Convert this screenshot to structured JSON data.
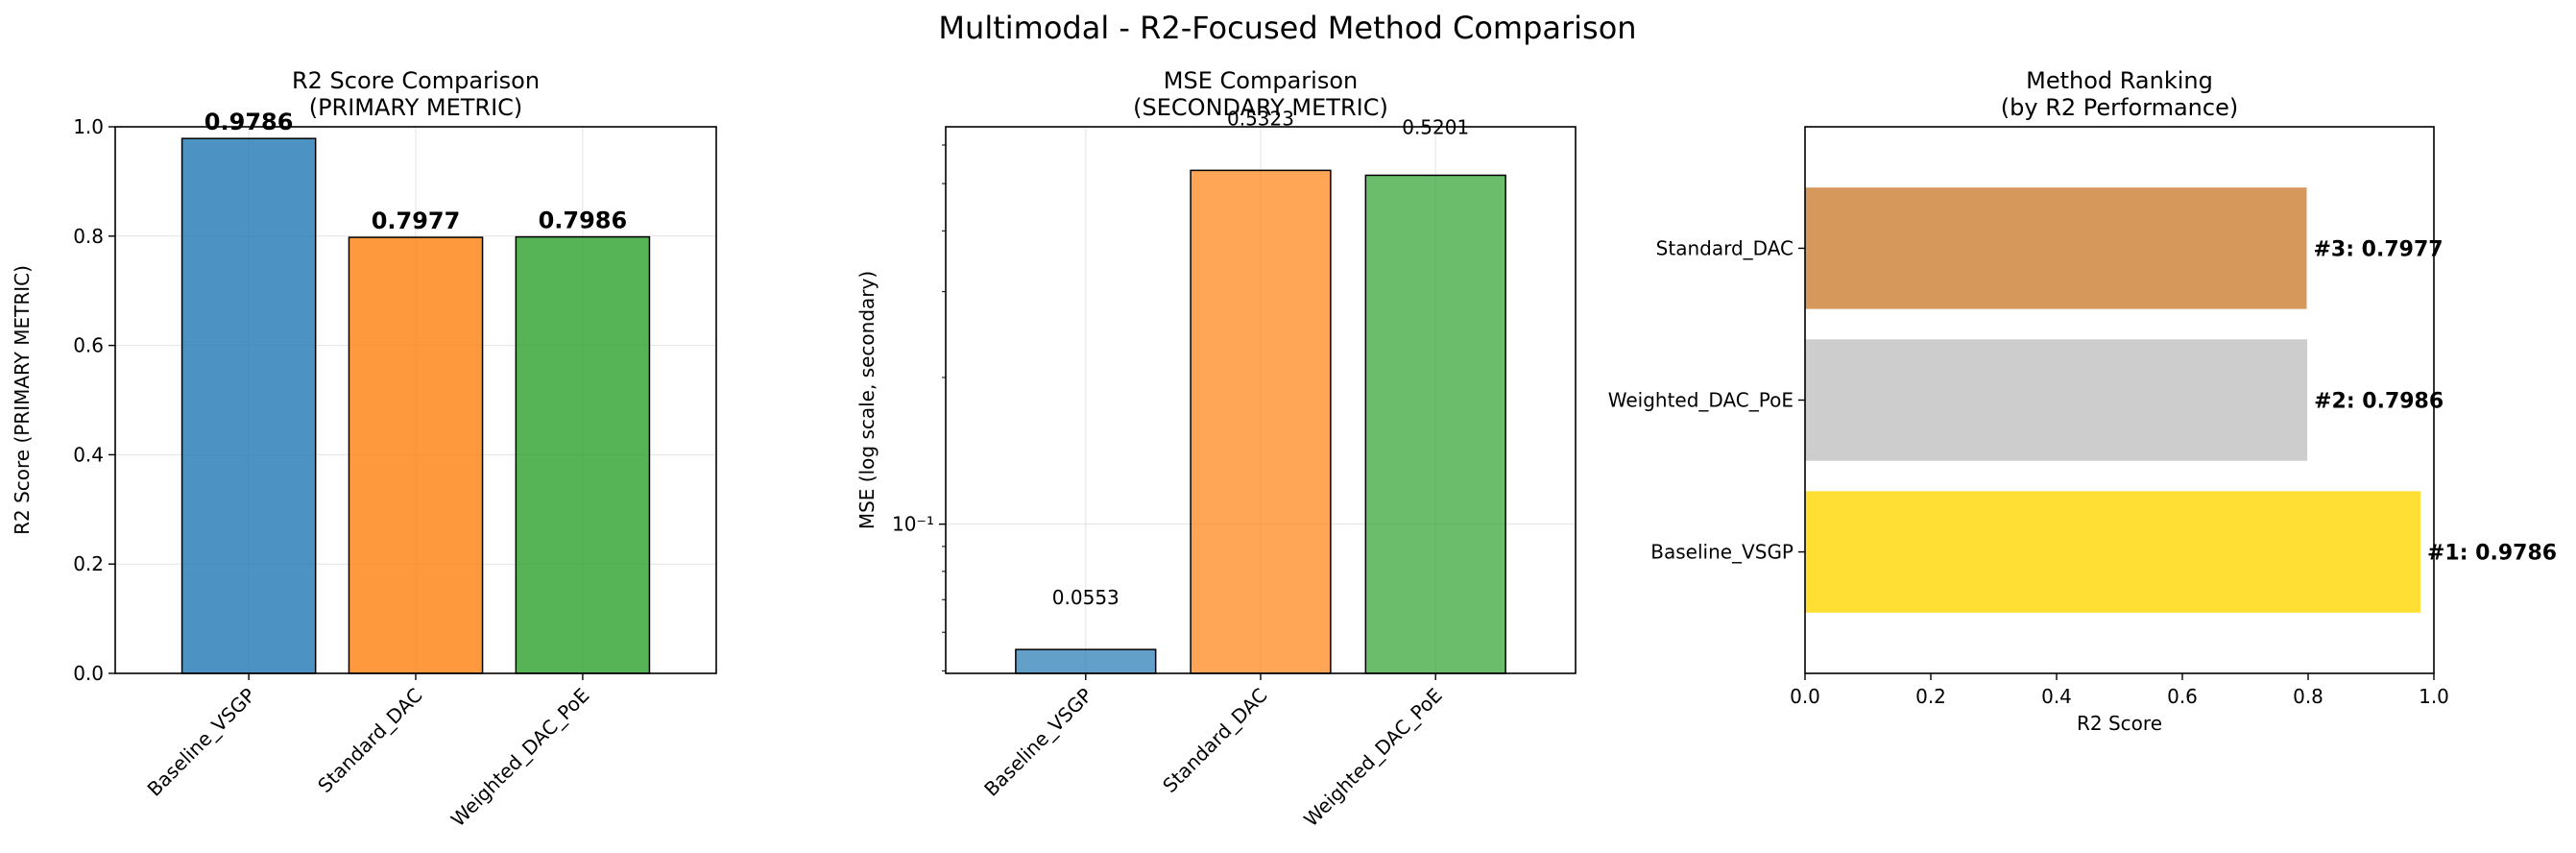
{
  "figure_title": "Multimodal - R2-Focused Method Comparison",
  "colors": {
    "blue": "#1f77b4",
    "orange": "#ff7f0e",
    "green": "#2ca02c",
    "gold": "#ffd700",
    "silver": "#c0c0c0",
    "bronze": "#cd7f32"
  },
  "chart_data": [
    {
      "type": "bar",
      "title": "R2 Score Comparison\n(PRIMARY METRIC)",
      "xlabel": "",
      "ylabel": "R2 Score (PRIMARY METRIC)",
      "categories": [
        "Baseline_VSGP",
        "Standard_DAC",
        "Weighted_DAC_PoE"
      ],
      "values": [
        0.9786,
        0.7977,
        0.7986
      ],
      "value_labels": [
        "0.9786",
        "0.7977",
        "0.7986"
      ],
      "ylim": [
        0,
        1.0
      ],
      "yticks": [
        0.0,
        0.2,
        0.4,
        0.6,
        0.8,
        1.0
      ],
      "ytick_labels": [
        "0.0",
        "0.2",
        "0.4",
        "0.6",
        "0.8",
        "1.0"
      ],
      "grid": true
    },
    {
      "type": "bar",
      "title": "MSE Comparison\n(SECONDARY METRIC)",
      "xlabel": "",
      "ylabel": "MSE (log scale, secondary)",
      "yscale": "log",
      "categories": [
        "Baseline_VSGP",
        "Standard_DAC",
        "Weighted_DAC_PoE"
      ],
      "values": [
        0.0553,
        0.5323,
        0.5201
      ],
      "value_labels": [
        "0.0553",
        "0.5323",
        "0.5201"
      ],
      "ylim": [
        0.0494,
        0.654
      ],
      "ytick_labels": [
        "10⁻¹"
      ],
      "grid": true
    },
    {
      "type": "bar",
      "orientation": "horizontal",
      "title": "Method Ranking\n(by R2 Performance)",
      "xlabel": "R2 Score",
      "ylabel": "",
      "categories": [
        "Baseline_VSGP",
        "Weighted_DAC_PoE",
        "Standard_DAC"
      ],
      "values": [
        0.9786,
        0.7986,
        0.7977
      ],
      "value_labels": [
        "#1: 0.9786",
        "#2: 0.7986",
        "#3: 0.7977"
      ],
      "xlim": [
        0,
        1.0
      ],
      "xticks": [
        0.0,
        0.2,
        0.4,
        0.6,
        0.8,
        1.0
      ],
      "xtick_labels": [
        "0.0",
        "0.2",
        "0.4",
        "0.6",
        "0.8",
        "1.0"
      ],
      "grid": false
    }
  ]
}
